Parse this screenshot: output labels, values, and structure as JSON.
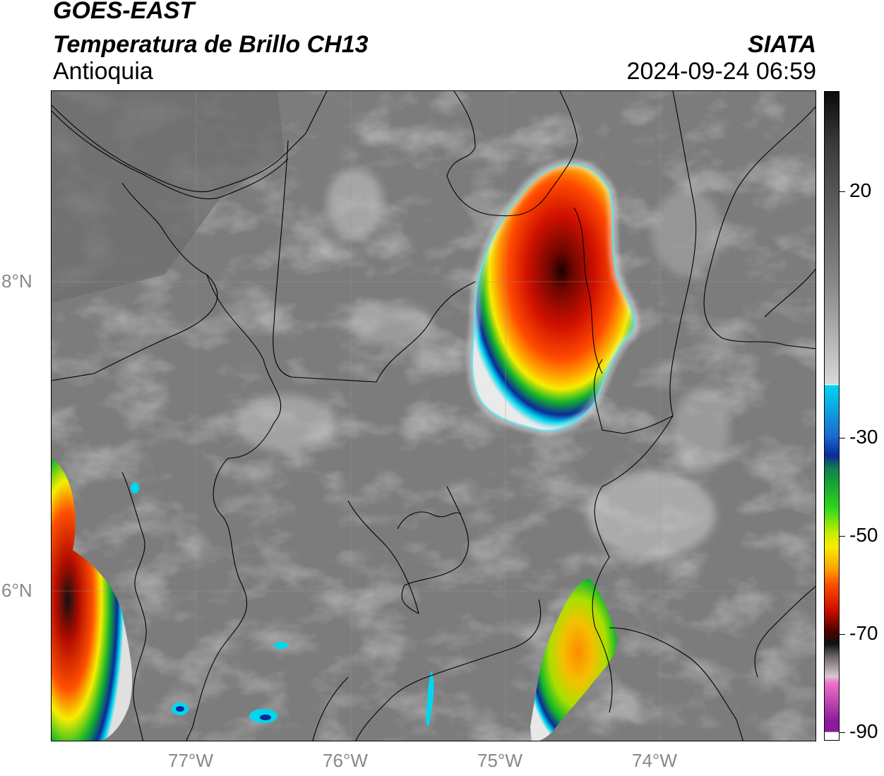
{
  "header": {
    "satellite": "GOES-EAST",
    "product": "Temperatura de Brillo CH13",
    "region": "Antioquia",
    "organization": "SIATA",
    "datetime": "2024-09-24 06:59"
  },
  "map": {
    "lat_labels": [
      "8°N",
      "6°N"
    ],
    "lon_labels": [
      "77°W",
      "76°W",
      "75°W",
      "74°W"
    ]
  },
  "colorbar": {
    "tick_labels": [
      "20",
      "-30",
      "-50",
      "-70",
      "-90"
    ],
    "range": [
      -90,
      35
    ],
    "colors": {
      "warm_gray": "#7a7a7a",
      "light": "#f2f2f2",
      "cyan": "#00d7ee",
      "blue": "#0a2a9a",
      "green": "#15b62a",
      "yellow": "#f5ee00",
      "orange": "#ff8a00",
      "red": "#e01400",
      "dark_red": "#6e0600",
      "black": "#111111",
      "pink": "#e070c8",
      "purple": "#8a1a9a"
    }
  }
}
